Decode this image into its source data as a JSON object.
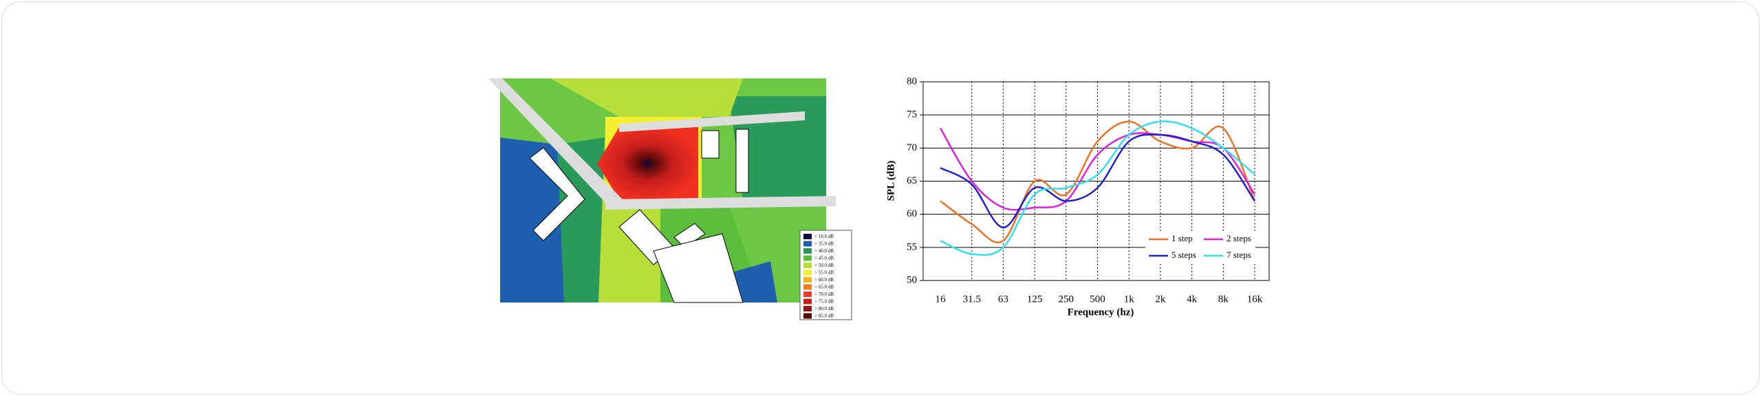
{
  "map": {
    "legend": [
      {
        "label": "< 10.0 dB",
        "color": "#0a0a3c"
      },
      {
        "label": "> 35.0 dB",
        "color": "#1f5fb0"
      },
      {
        "label": "> 40.0 dB",
        "color": "#2a9a5a"
      },
      {
        "label": "> 45.0 dB",
        "color": "#5cbc3c"
      },
      {
        "label": "> 50.0 dB",
        "color": "#b8de3a"
      },
      {
        "label": "> 55.0 dB",
        "color": "#f4ee30"
      },
      {
        "label": "> 60.0 dB",
        "color": "#f6b41c"
      },
      {
        "label": "> 65.0 dB",
        "color": "#f07c22"
      },
      {
        "label": "> 70.0 dB",
        "color": "#e83c26"
      },
      {
        "label": "> 75.0 dB",
        "color": "#c81e1e"
      },
      {
        "label": "> 80.0 dB",
        "color": "#961414"
      },
      {
        "label": "> 85.0 dB",
        "color": "#5a0a0a"
      }
    ]
  },
  "chart_data": {
    "type": "line",
    "x_label": "Frequency (hz)",
    "y_label": "SPL (dB)",
    "categories": [
      "16",
      "31.5",
      "63",
      "125",
      "250",
      "500",
      "1k",
      "2k",
      "4k",
      "8k",
      "16k"
    ],
    "series": [
      {
        "name": "1 step",
        "color": "#f07020",
        "values": [
          62,
          58.5,
          56,
          65,
          63,
          71,
          74,
          71,
          70,
          73,
          62
        ]
      },
      {
        "name": "2 steps",
        "color": "#e020e0",
        "values": [
          73,
          65,
          61,
          61,
          62,
          69,
          72,
          72,
          71,
          70,
          63
        ]
      },
      {
        "name": "5 steps",
        "color": "#2020d0",
        "values": [
          67,
          64.5,
          58,
          64,
          62,
          64,
          71,
          72,
          71,
          69,
          62
        ]
      },
      {
        "name": "7 steps",
        "color": "#30e0f0",
        "values": [
          56,
          54,
          55,
          63,
          64,
          66,
          72,
          74,
          73,
          70,
          66
        ]
      }
    ],
    "ylim": [
      50,
      80
    ],
    "yticks": [
      50,
      55,
      60,
      65,
      70,
      75,
      80
    ],
    "grid": true
  }
}
